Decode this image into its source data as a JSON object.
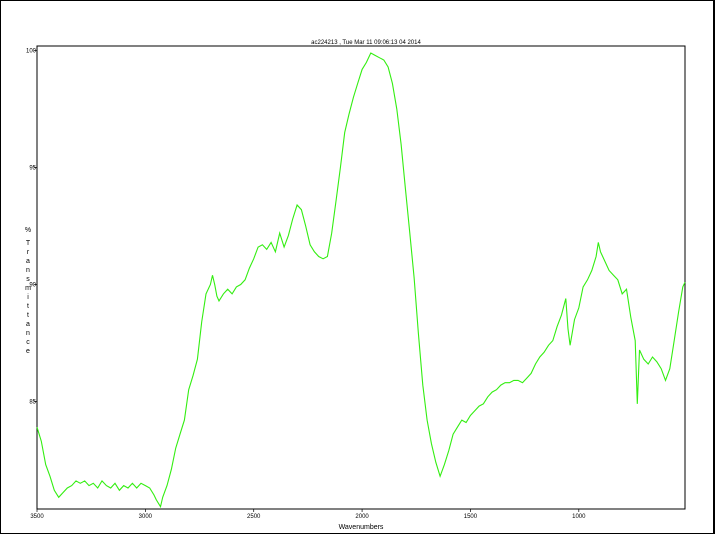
{
  "chart_data": {
    "type": "line",
    "title": "ac224213 , Tue Mar 11 09:06:13 04 2014",
    "xlabel": "Wavenumbers",
    "ylabel": "% Transmittance",
    "xlim": [
      3500,
      510
    ],
    "ylim": [
      80.4,
      100.2
    ],
    "x_reversed": true,
    "grid": false,
    "xticks": [
      3500,
      3000,
      2500,
      2000,
      1500,
      1000
    ],
    "yticks": [
      85,
      90,
      95,
      100
    ],
    "ytick_labels": [
      "85",
      "90",
      "95",
      "100"
    ],
    "series": [
      {
        "color": "#33ee11",
        "points": [
          [
            3500,
            83.9
          ],
          [
            3480,
            83.3
          ],
          [
            3460,
            82.3
          ],
          [
            3440,
            81.8
          ],
          [
            3420,
            81.2
          ],
          [
            3400,
            80.9
          ],
          [
            3380,
            81.1
          ],
          [
            3360,
            81.3
          ],
          [
            3340,
            81.4
          ],
          [
            3320,
            81.6
          ],
          [
            3300,
            81.5
          ],
          [
            3280,
            81.6
          ],
          [
            3260,
            81.4
          ],
          [
            3240,
            81.5
          ],
          [
            3220,
            81.3
          ],
          [
            3200,
            81.6
          ],
          [
            3180,
            81.4
          ],
          [
            3160,
            81.3
          ],
          [
            3140,
            81.5
          ],
          [
            3120,
            81.2
          ],
          [
            3100,
            81.4
          ],
          [
            3080,
            81.3
          ],
          [
            3060,
            81.5
          ],
          [
            3040,
            81.3
          ],
          [
            3020,
            81.5
          ],
          [
            3000,
            81.4
          ],
          [
            2980,
            81.3
          ],
          [
            2960,
            81.0
          ],
          [
            2950,
            80.8
          ],
          [
            2930,
            80.5
          ],
          [
            2920,
            80.9
          ],
          [
            2900,
            81.4
          ],
          [
            2880,
            82.1
          ],
          [
            2860,
            83.0
          ],
          [
            2840,
            83.6
          ],
          [
            2820,
            84.2
          ],
          [
            2800,
            85.5
          ],
          [
            2780,
            86.1
          ],
          [
            2760,
            86.8
          ],
          [
            2740,
            88.4
          ],
          [
            2720,
            89.6
          ],
          [
            2700,
            90.0
          ],
          [
            2690,
            90.4
          ],
          [
            2680,
            90.0
          ],
          [
            2670,
            89.5
          ],
          [
            2660,
            89.3
          ],
          [
            2640,
            89.6
          ],
          [
            2620,
            89.8
          ],
          [
            2600,
            89.6
          ],
          [
            2580,
            89.9
          ],
          [
            2560,
            90.0
          ],
          [
            2540,
            90.2
          ],
          [
            2520,
            90.7
          ],
          [
            2500,
            91.1
          ],
          [
            2480,
            91.6
          ],
          [
            2460,
            91.7
          ],
          [
            2440,
            91.5
          ],
          [
            2420,
            91.8
          ],
          [
            2400,
            91.4
          ],
          [
            2380,
            92.2
          ],
          [
            2360,
            91.6
          ],
          [
            2340,
            92.1
          ],
          [
            2320,
            92.8
          ],
          [
            2300,
            93.4
          ],
          [
            2280,
            93.2
          ],
          [
            2260,
            92.5
          ],
          [
            2240,
            91.7
          ],
          [
            2220,
            91.4
          ],
          [
            2200,
            91.2
          ],
          [
            2180,
            91.1
          ],
          [
            2160,
            91.2
          ],
          [
            2140,
            92.2
          ],
          [
            2120,
            93.6
          ],
          [
            2100,
            95.0
          ],
          [
            2080,
            96.5
          ],
          [
            2060,
            97.3
          ],
          [
            2040,
            98.0
          ],
          [
            2020,
            98.6
          ],
          [
            2000,
            99.2
          ],
          [
            1980,
            99.5
          ],
          [
            1960,
            99.9
          ],
          [
            1940,
            99.8
          ],
          [
            1920,
            99.7
          ],
          [
            1900,
            99.6
          ],
          [
            1880,
            99.3
          ],
          [
            1860,
            98.6
          ],
          [
            1840,
            97.5
          ],
          [
            1820,
            96.0
          ],
          [
            1800,
            94.1
          ],
          [
            1780,
            92.2
          ],
          [
            1760,
            90.3
          ],
          [
            1740,
            87.9
          ],
          [
            1720,
            85.7
          ],
          [
            1700,
            84.2
          ],
          [
            1680,
            83.2
          ],
          [
            1660,
            82.4
          ],
          [
            1640,
            81.8
          ],
          [
            1620,
            82.3
          ],
          [
            1600,
            82.9
          ],
          [
            1580,
            83.6
          ],
          [
            1560,
            83.9
          ],
          [
            1540,
            84.2
          ],
          [
            1520,
            84.1
          ],
          [
            1500,
            84.4
          ],
          [
            1480,
            84.6
          ],
          [
            1460,
            84.8
          ],
          [
            1440,
            84.9
          ],
          [
            1420,
            85.2
          ],
          [
            1400,
            85.4
          ],
          [
            1380,
            85.5
          ],
          [
            1360,
            85.7
          ],
          [
            1340,
            85.8
          ],
          [
            1320,
            85.8
          ],
          [
            1300,
            85.9
          ],
          [
            1280,
            85.9
          ],
          [
            1260,
            85.8
          ],
          [
            1240,
            86.0
          ],
          [
            1220,
            86.2
          ],
          [
            1200,
            86.6
          ],
          [
            1180,
            86.9
          ],
          [
            1160,
            87.1
          ],
          [
            1140,
            87.4
          ],
          [
            1120,
            87.6
          ],
          [
            1100,
            88.2
          ],
          [
            1080,
            88.7
          ],
          [
            1060,
            89.4
          ],
          [
            1050,
            88.1
          ],
          [
            1040,
            87.4
          ],
          [
            1020,
            88.5
          ],
          [
            1000,
            89.0
          ],
          [
            980,
            89.9
          ],
          [
            960,
            90.2
          ],
          [
            940,
            90.6
          ],
          [
            920,
            91.2
          ],
          [
            910,
            91.8
          ],
          [
            900,
            91.4
          ],
          [
            880,
            91.0
          ],
          [
            860,
            90.6
          ],
          [
            840,
            90.4
          ],
          [
            820,
            90.2
          ],
          [
            800,
            89.6
          ],
          [
            780,
            89.8
          ],
          [
            760,
            88.6
          ],
          [
            740,
            87.6
          ],
          [
            730,
            84.9
          ],
          [
            720,
            87.2
          ],
          [
            700,
            86.8
          ],
          [
            680,
            86.6
          ],
          [
            660,
            86.9
          ],
          [
            640,
            86.7
          ],
          [
            620,
            86.4
          ],
          [
            600,
            85.9
          ],
          [
            580,
            86.4
          ],
          [
            560,
            87.6
          ],
          [
            540,
            88.8
          ],
          [
            520,
            89.9
          ],
          [
            510,
            90.1
          ]
        ]
      }
    ]
  }
}
